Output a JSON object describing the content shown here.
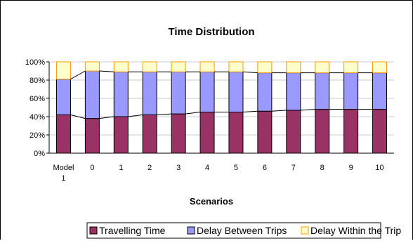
{
  "chart_data": {
    "type": "bar",
    "stacked": "percent",
    "title": "Time Distribution",
    "xlabel": "Scenarios",
    "ylabel": "",
    "ylim": [
      0,
      100
    ],
    "yticks": [
      "0%",
      "20%",
      "40%",
      "60%",
      "80%",
      "100%"
    ],
    "categories": [
      "Model 1",
      "0",
      "1",
      "2",
      "3",
      "4",
      "5",
      "6",
      "7",
      "8",
      "9",
      "10"
    ],
    "series": [
      {
        "name": "Travelling Time",
        "color": "#993366",
        "values": [
          42,
          38,
          40,
          42,
          43,
          45,
          45,
          46,
          47,
          48,
          48,
          48
        ]
      },
      {
        "name": "Delay Between Trips",
        "color": "#9999ff",
        "values": [
          39,
          52,
          49,
          47,
          46,
          44,
          44,
          42,
          41,
          40,
          40,
          40
        ]
      },
      {
        "name": "Delay Within the Trip",
        "color": "#ffffcc",
        "border": "#ff9900",
        "values": [
          19,
          10,
          11,
          11,
          11,
          11,
          11,
          12,
          12,
          12,
          12,
          12
        ]
      }
    ],
    "series_lines": true,
    "grid": true,
    "legend": "bottom"
  }
}
